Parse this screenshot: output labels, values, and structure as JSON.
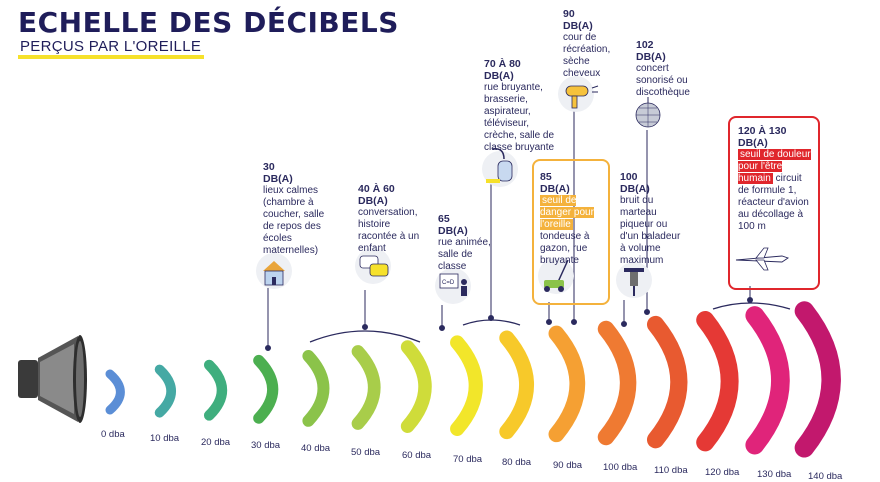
{
  "header": {
    "title": "ECHELLE DES DÉCIBELS",
    "subtitle": "PERÇUS PAR L'OREILLE"
  },
  "scale": {
    "ticks": [
      {
        "label": "0 dba",
        "color": "#5b8ed6"
      },
      {
        "label": "10 dba",
        "color": "#45a9a4"
      },
      {
        "label": "20 dba",
        "color": "#3fae7e"
      },
      {
        "label": "30 dba",
        "color": "#4caf50"
      },
      {
        "label": "40 dba",
        "color": "#8bc34a"
      },
      {
        "label": "50 dba",
        "color": "#a8cd4a"
      },
      {
        "label": "60 dba",
        "color": "#cfdc3a"
      },
      {
        "label": "70 dba",
        "color": "#f2e62a"
      },
      {
        "label": "80 dba",
        "color": "#f7c92a"
      },
      {
        "label": "90 dba",
        "color": "#f5a033"
      },
      {
        "label": "100 dba",
        "color": "#ef7a32"
      },
      {
        "label": "110 dba",
        "color": "#e85a30"
      },
      {
        "label": "120 dba",
        "color": "#e53935"
      },
      {
        "label": "130 dba",
        "color": "#e0247a"
      },
      {
        "label": "140 dba",
        "color": "#c2186d"
      }
    ]
  },
  "levels": [
    {
      "head": "30",
      "head2": "DB(A)",
      "text": "lieux calmes (chambre à coucher, salle de repos des écoles maternelles)"
    },
    {
      "head": "40 À 60",
      "head2": "DB(A)",
      "text": "conversation, histoire racontée à un enfant"
    },
    {
      "head": "65",
      "head2": "DB(A)",
      "text": "rue animée, salle de classe"
    },
    {
      "head": "70 À 80",
      "head2": "DB(A)",
      "text": "rue bruyante, brasserie, aspirateur, téléviseur, crèche, salle de classe bruyante"
    },
    {
      "head": "85",
      "head2": "DB(A)",
      "highlight": "seuil de danger pour l'oreille",
      "text": "tondeuse à gazon, rue bruyante"
    },
    {
      "head": "90",
      "head2": "DB(A)",
      "text": "cour de récréation, sèche cheveux"
    },
    {
      "head": "100",
      "head2": "DB(A)",
      "text": "bruit du marteau piqueur ou d'un baladeur à volume maximum"
    },
    {
      "head": "102",
      "head2": "DB(A)",
      "text": "concert sonorisé ou discothèque"
    },
    {
      "head": "120 À 130",
      "head2": "DB(A)",
      "highlight": "seuil de douleur pour l'être humain",
      "text": "circuit de formule 1, réacteur d'avion au décollage à 100 m"
    }
  ],
  "icons": {
    "speaker": "speaker-icon",
    "house": "house-icon",
    "chat": "chat-icon",
    "classroom": "classroom-icon",
    "vacuum": "vacuum-icon",
    "lawnmower": "lawnmower-icon",
    "hairdryer": "hairdryer-icon",
    "jackhammer": "jackhammer-icon",
    "discoball": "discoball-icon",
    "airplane": "airplane-icon"
  },
  "colors": {
    "title": "#1f1d5a",
    "accent_yellow": "#f6e12b",
    "danger_orange": "#f4b23c",
    "pain_red": "#e0262c"
  }
}
